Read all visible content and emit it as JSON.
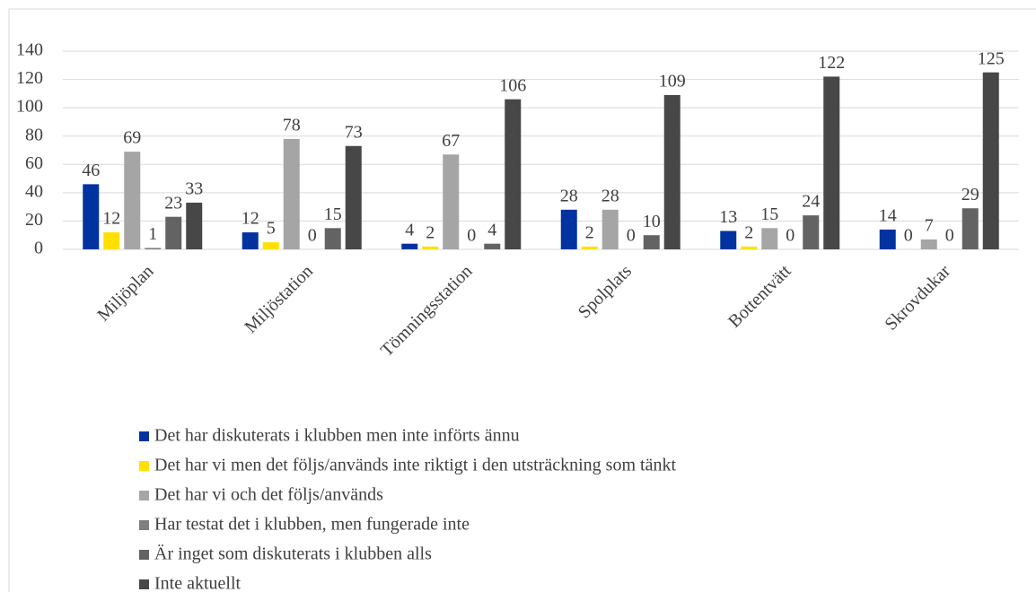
{
  "chart_data": {
    "type": "bar",
    "categories": [
      "Miljöplan",
      "Miljöstation",
      "Tömningsstation",
      "Spolplats",
      "Bottentvätt",
      "Skrovdukar"
    ],
    "series": [
      {
        "name": "Det har diskuterats i klubben men inte införts ännu",
        "color": "#0033a0",
        "values": [
          46,
          12,
          4,
          28,
          13,
          14
        ]
      },
      {
        "name": "Det har vi men det följs/används inte riktigt i den utsträckning som tänkt",
        "color": "#ffe000",
        "values": [
          12,
          5,
          2,
          2,
          2,
          0
        ]
      },
      {
        "name": "Det har vi och det följs/används",
        "color": "#a5a5a5",
        "values": [
          69,
          78,
          67,
          28,
          15,
          7
        ]
      },
      {
        "name": "Har testat det i klubben, men fungerade inte",
        "color": "#7f7f7f",
        "values": [
          1,
          0,
          0,
          0,
          0,
          0
        ]
      },
      {
        "name": "Är inget som diskuterats i klubben alls",
        "color": "#636363",
        "values": [
          23,
          15,
          4,
          10,
          24,
          29
        ]
      },
      {
        "name": "Inte aktuellt",
        "color": "#474747",
        "values": [
          33,
          73,
          106,
          109,
          122,
          125
        ]
      }
    ],
    "ylim": [
      0,
      140
    ],
    "yticks": [
      0,
      20,
      40,
      60,
      80,
      100,
      120,
      140
    ],
    "grid": true,
    "legend": "bottom"
  }
}
